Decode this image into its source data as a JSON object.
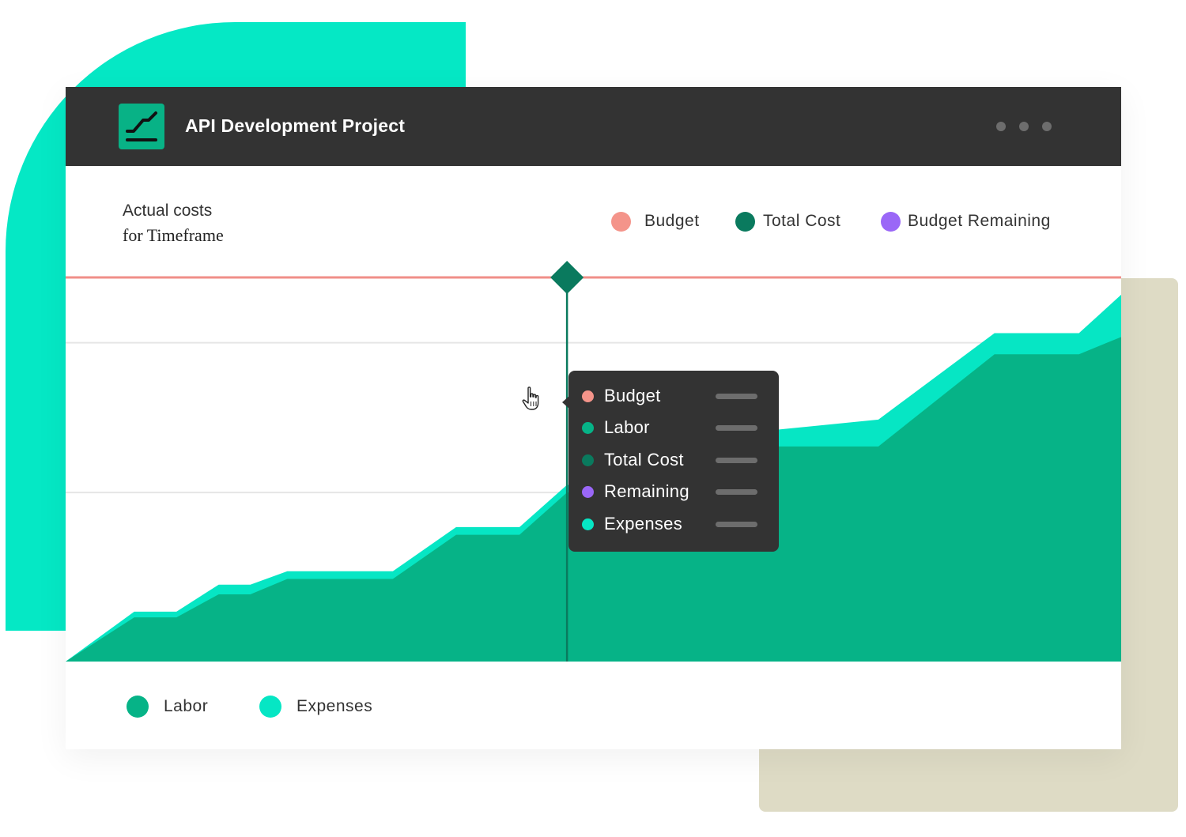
{
  "header": {
    "title": "API Development Project",
    "logo_icon": "line-chart-icon",
    "menu_icon": "more-dots-icon"
  },
  "chart_title": {
    "line1": "Actual costs",
    "line2": "for Timeframe"
  },
  "legend_top": [
    {
      "label": "Budget",
      "color": "#f4948a"
    },
    {
      "label": "Total Cost",
      "color": "#0a7a5e"
    },
    {
      "label": "Budget Remaining",
      "color": "#9a67f7"
    }
  ],
  "legend_bottom": [
    {
      "label": "Labor",
      "color": "#06b387"
    },
    {
      "label": "Expenses",
      "color": "#06e6c4"
    }
  ],
  "tooltip": {
    "rows": [
      {
        "label": "Budget",
        "color": "#f4948a"
      },
      {
        "label": "Labor",
        "color": "#06b387"
      },
      {
        "label": "Total Cost",
        "color": "#0a7a5e"
      },
      {
        "label": "Remaining",
        "color": "#9a67f7"
      },
      {
        "label": "Expenses",
        "color": "#06e6c4"
      }
    ]
  },
  "chart_data": {
    "type": "area",
    "stacked": true,
    "title": "Actual costs for Timeframe",
    "xlabel": "",
    "ylabel": "",
    "x": [
      0,
      6.5,
      10.5,
      14.5,
      17.5,
      21.0,
      31.0,
      37.0,
      43.0,
      47.5,
      52.0,
      57.0,
      77.0,
      88.0,
      96.0,
      100.0
    ],
    "ylim": [
      0,
      100
    ],
    "series": [
      {
        "name": "Labor",
        "color": "#06b387",
        "values": [
          0,
          11.5,
          11.5,
          17.5,
          17.5,
          21.5,
          21.5,
          33.0,
          33.0,
          44.0,
          44.0,
          56.0,
          56.0,
          80.0,
          80.0,
          84.5
        ]
      },
      {
        "name": "Expenses",
        "color": "#06e6c4",
        "values": [
          0,
          1.5,
          1.5,
          2.5,
          2.5,
          2.0,
          2.0,
          2.0,
          2.0,
          2.0,
          2.0,
          1.5,
          7.0,
          5.5,
          5.5,
          11.0
        ]
      }
    ],
    "budget": 100,
    "budget_color": "#f08f88",
    "marker": {
      "x": 47.5
    },
    "gridlines": [
      83,
      44
    ],
    "grid": true,
    "legend_placement": "top-right"
  }
}
